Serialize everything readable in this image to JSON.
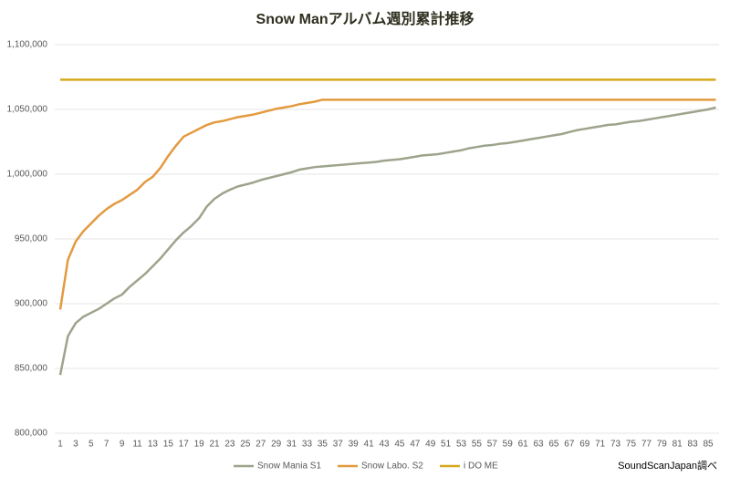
{
  "chart_data": {
    "type": "line",
    "title": "Snow Manアルバム週別累計推移",
    "source": "SoundScanJapan調べ",
    "categories": [
      1,
      null,
      3,
      null,
      5,
      null,
      7,
      null,
      9,
      null,
      11,
      null,
      13,
      null,
      15,
      null,
      17,
      null,
      19,
      null,
      21,
      null,
      23,
      null,
      25,
      null,
      27,
      null,
      29,
      null,
      31,
      null,
      33,
      null,
      35,
      null,
      37,
      null,
      39,
      null,
      41,
      null,
      43,
      null,
      45,
      null,
      47,
      null,
      49,
      null,
      51,
      null,
      53,
      null,
      55,
      null,
      57,
      null,
      59,
      null,
      61,
      null,
      63,
      null,
      65,
      null,
      67,
      null,
      69,
      null,
      71,
      null,
      73,
      null,
      75,
      null,
      77,
      null,
      79,
      null,
      81,
      null,
      83,
      null,
      85,
      null
    ],
    "ylim": [
      800000,
      1100000
    ],
    "yticks": [
      {
        "value": 800000,
        "label": "800,000"
      },
      {
        "value": 850000,
        "label": "850,000"
      },
      {
        "value": 900000,
        "label": "900,000"
      },
      {
        "value": 950000,
        "label": "950,000"
      },
      {
        "value": 1000000,
        "label": "1,000,000"
      },
      {
        "value": 1050000,
        "label": "1,050,000"
      },
      {
        "value": 1100000,
        "label": "1,100,000"
      }
    ],
    "grid": true,
    "legend": "bottom",
    "series": [
      {
        "name": "Snow Mania S1",
        "color": "#9da48c",
        "values": [
          845000,
          875000,
          885000,
          890000,
          893000,
          896000,
          900000,
          904000,
          907000,
          913000,
          918000,
          923000,
          929000,
          935000,
          942000,
          949000,
          955000,
          960000,
          966000,
          975000,
          981000,
          985000,
          988000,
          990500,
          992000,
          993500,
          995500,
          997000,
          998500,
          1000000,
          1001500,
          1003500,
          1004500,
          1005500,
          1006000,
          1006500,
          1007000,
          1007500,
          1008000,
          1008500,
          1009000,
          1009500,
          1010500,
          1011000,
          1011500,
          1012500,
          1013500,
          1014500,
          1015000,
          1015500,
          1016500,
          1017500,
          1018500,
          1020000,
          1021000,
          1022000,
          1022500,
          1023500,
          1024000,
          1025000,
          1026000,
          1027000,
          1028000,
          1029000,
          1030000,
          1031000,
          1032500,
          1034000,
          1035000,
          1036000,
          1037000,
          1038000,
          1038500,
          1039500,
          1040500,
          1041000,
          1042000,
          1043000,
          1044000,
          1045000,
          1046000,
          1047000,
          1048000,
          1049000,
          1050000,
          1051500
        ]
      },
      {
        "name": "Snow Labo. S2",
        "color": "#e39a3f",
        "values": [
          895500,
          934000,
          948000,
          956000,
          962000,
          968000,
          973000,
          977000,
          980000,
          984000,
          988000,
          994000,
          998000,
          1005000,
          1014000,
          1022000,
          1029000,
          1032000,
          1035000,
          1038000,
          1040000,
          1041000,
          1042500,
          1044000,
          1045000,
          1046000,
          1047500,
          1049000,
          1050500,
          1051500,
          1052500,
          1054000,
          1055000,
          1056000,
          1057500,
          1057500,
          1057500,
          1057500,
          1057500,
          1057500,
          1057500,
          1057500,
          1057500,
          1057500,
          1057500,
          1057500,
          1057500,
          1057500,
          1057500,
          1057500,
          1057500,
          1057500,
          1057500,
          1057500,
          1057500,
          1057500,
          1057500,
          1057500,
          1057500,
          1057500,
          1057500,
          1057500,
          1057500,
          1057500,
          1057500,
          1057500,
          1057500,
          1057500,
          1057500,
          1057500,
          1057500,
          1057500,
          1057500,
          1057500,
          1057500,
          1057500,
          1057500,
          1057500,
          1057500,
          1057500,
          1057500,
          1057500,
          1057500,
          1057500,
          1057500,
          1057500
        ]
      },
      {
        "name": "i DO ME",
        "color": "#d6a91c",
        "values": [
          1073000,
          1073000,
          1073000,
          1073000,
          1073000,
          1073000,
          1073000,
          1073000,
          1073000,
          1073000,
          1073000,
          1073000,
          1073000,
          1073000,
          1073000,
          1073000,
          1073000,
          1073000,
          1073000,
          1073000,
          1073000,
          1073000,
          1073000,
          1073000,
          1073000,
          1073000,
          1073000,
          1073000,
          1073000,
          1073000,
          1073000,
          1073000,
          1073000,
          1073000,
          1073000,
          1073000,
          1073000,
          1073000,
          1073000,
          1073000,
          1073000,
          1073000,
          1073000,
          1073000,
          1073000,
          1073000,
          1073000,
          1073000,
          1073000,
          1073000,
          1073000,
          1073000,
          1073000,
          1073000,
          1073000,
          1073000,
          1073000,
          1073000,
          1073000,
          1073000,
          1073000,
          1073000,
          1073000,
          1073000,
          1073000,
          1073000,
          1073000,
          1073000,
          1073000,
          1073000,
          1073000,
          1073000,
          1073000,
          1073000,
          1073000,
          1073000,
          1073000,
          1073000,
          1073000,
          1073000,
          1073000,
          1073000,
          1073000,
          1073000,
          1073000,
          1073000
        ]
      }
    ]
  }
}
